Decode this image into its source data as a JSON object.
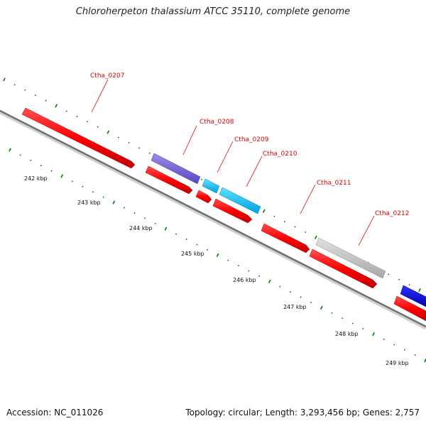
{
  "title": "Chloroherpeton thalassium ATCC 35110, complete genome",
  "footer": {
    "accession": "Accession: NC_011026",
    "summary": "Topology: circular; Length: 3,293,456 bp; Genes: 2,757"
  },
  "colors": {
    "forward_cds": "#ff0000",
    "reverse_cds": "#ff0000",
    "purple_feature": "#7060d0",
    "cyan_feature": "#10c0f0",
    "grey_feature": "#c0c0c0",
    "blue_feature": "#0000e0",
    "tick": "#007a00",
    "label": "#e00000",
    "backbone": "#808080"
  },
  "scale_labels": [
    "242 kbp",
    "243 kbp",
    "244 kbp",
    "245 kbp",
    "246 kbp",
    "247 kbp",
    "248 kbp",
    "249 kbp"
  ],
  "gene_labels": [
    "Ctha_0207",
    "Ctha_0208",
    "Ctha_0209",
    "Ctha_0210",
    "Ctha_0211",
    "Ctha_0212"
  ]
}
